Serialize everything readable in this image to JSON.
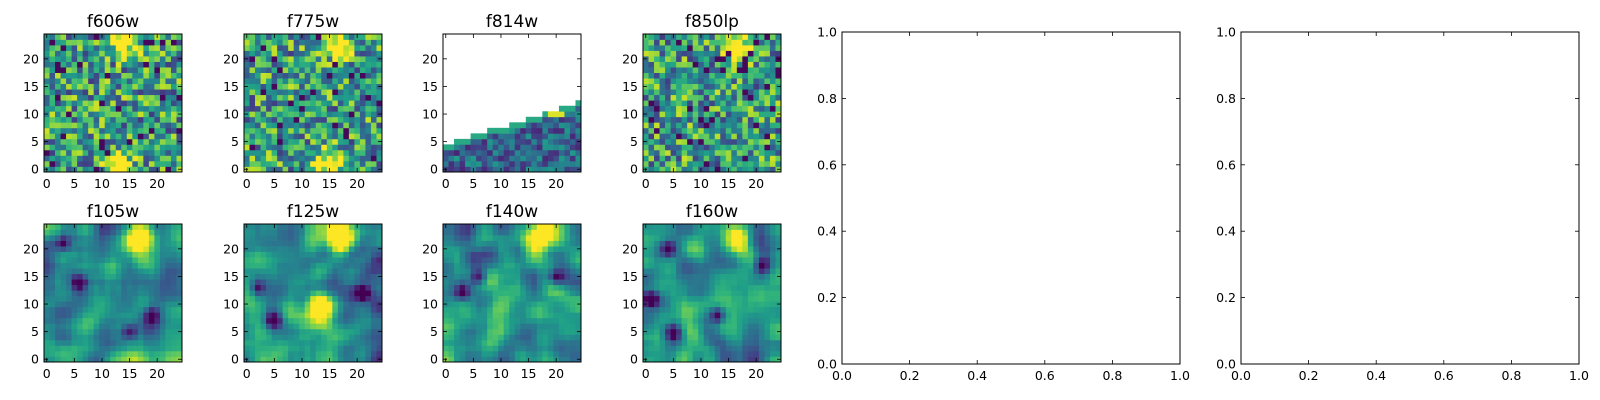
{
  "chart_data": [
    {
      "type": "heatmap",
      "title": "f606w",
      "xticks": [
        "0",
        "5",
        "10",
        "15",
        "20"
      ],
      "yticks": [
        "0",
        "5",
        "10",
        "15",
        "20"
      ],
      "xlim": [
        -0.5,
        24.5
      ],
      "ylim": [
        -0.5,
        24.5
      ],
      "colormap": "viridis",
      "bright_spots": [
        [
          14,
          23
        ],
        [
          13,
          1
        ]
      ],
      "dark_spots": [],
      "noise": "high",
      "grid": false
    },
    {
      "type": "heatmap",
      "title": "f775w",
      "xticks": [
        "0",
        "5",
        "10",
        "15",
        "20"
      ],
      "yticks": [
        "0",
        "5",
        "10",
        "15",
        "20"
      ],
      "xlim": [
        -0.5,
        24.5
      ],
      "ylim": [
        -0.5,
        24.5
      ],
      "colormap": "viridis",
      "bright_spots": [
        [
          17,
          22
        ],
        [
          15,
          1
        ]
      ],
      "dark_spots": [],
      "noise": "high",
      "grid": false
    },
    {
      "type": "heatmap",
      "title": "f814w",
      "xticks": [
        "0",
        "5",
        "10",
        "15",
        "20"
      ],
      "yticks": [
        "0",
        "5",
        "10",
        "15",
        "20"
      ],
      "xlim": [
        -0.5,
        24.5
      ],
      "ylim": [
        -0.5,
        24.5
      ],
      "colormap": "viridis",
      "bright_spots": [
        [
          20,
          10
        ]
      ],
      "dark_spots": [],
      "noise": "partial",
      "coverage": "lower wedge",
      "grid": false
    },
    {
      "type": "heatmap",
      "title": "f850lp",
      "xticks": [
        "0",
        "5",
        "10",
        "15",
        "20"
      ],
      "yticks": [
        "0",
        "5",
        "10",
        "15",
        "20"
      ],
      "xlim": [
        -0.5,
        24.5
      ],
      "ylim": [
        -0.5,
        24.5
      ],
      "colormap": "viridis",
      "bright_spots": [
        [
          17,
          22
        ]
      ],
      "dark_spots": [],
      "noise": "high",
      "grid": false
    },
    {
      "type": "empty",
      "xlim": [
        0.0,
        1.0
      ],
      "ylim": [
        0.0,
        1.0
      ],
      "xticks": [
        "0.0",
        "0.2",
        "0.4",
        "0.6",
        "0.8",
        "1.0"
      ],
      "yticks": [
        "0.0",
        "0.2",
        "0.4",
        "0.6",
        "0.8",
        "1.0"
      ]
    },
    {
      "type": "empty",
      "xlim": [
        0.0,
        1.0
      ],
      "ylim": [
        0.0,
        1.0
      ],
      "xticks": [
        "0.0",
        "0.2",
        "0.4",
        "0.6",
        "0.8",
        "1.0"
      ],
      "yticks": [
        "0.0",
        "0.2",
        "0.4",
        "0.6",
        "0.8",
        "1.0"
      ]
    },
    {
      "type": "heatmap",
      "title": "f105w",
      "xticks": [
        "0",
        "5",
        "10",
        "15",
        "20"
      ],
      "yticks": [
        "0",
        "5",
        "10",
        "15",
        "20"
      ],
      "xlim": [
        -0.5,
        24.5
      ],
      "ylim": [
        -0.5,
        24.5
      ],
      "colormap": "viridis",
      "bright_spots": [
        [
          17,
          22
        ]
      ],
      "dark_spots": [
        [
          3,
          21
        ],
        [
          6,
          14
        ],
        [
          15,
          5
        ],
        [
          19,
          8
        ]
      ],
      "noise": "smooth",
      "grid": false
    },
    {
      "type": "heatmap",
      "title": "f125w",
      "xticks": [
        "0",
        "5",
        "10",
        "15",
        "20"
      ],
      "yticks": [
        "0",
        "5",
        "10",
        "15",
        "20"
      ],
      "xlim": [
        -0.5,
        24.5
      ],
      "ylim": [
        -0.5,
        24.5
      ],
      "colormap": "viridis",
      "bright_spots": [
        [
          17,
          22
        ],
        [
          13,
          10
        ]
      ],
      "dark_spots": [
        [
          2,
          13
        ],
        [
          5,
          7
        ],
        [
          21,
          12
        ]
      ],
      "noise": "smooth",
      "grid": false
    },
    {
      "type": "heatmap",
      "title": "f140w",
      "xticks": [
        "0",
        "5",
        "10",
        "15",
        "20"
      ],
      "yticks": [
        "0",
        "5",
        "10",
        "15",
        "20"
      ],
      "xlim": [
        -0.5,
        24.5
      ],
      "ylim": [
        -0.5,
        24.5
      ],
      "colormap": "viridis",
      "bright_spots": [
        [
          17,
          22
        ]
      ],
      "dark_spots": [
        [
          3,
          12
        ],
        [
          6,
          15
        ],
        [
          20,
          15
        ]
      ],
      "noise": "smooth",
      "grid": false
    },
    {
      "type": "heatmap",
      "title": "f160w",
      "xticks": [
        "0",
        "5",
        "10",
        "15",
        "20"
      ],
      "yticks": [
        "0",
        "5",
        "10",
        "15",
        "20"
      ],
      "xlim": [
        -0.5,
        24.5
      ],
      "ylim": [
        -0.5,
        24.5
      ],
      "colormap": "viridis",
      "bright_spots": [
        [
          17,
          22
        ]
      ],
      "dark_spots": [
        [
          1,
          11
        ],
        [
          4,
          20
        ],
        [
          5,
          5
        ],
        [
          13,
          8
        ],
        [
          21,
          17
        ]
      ],
      "noise": "smooth",
      "grid": false
    }
  ]
}
